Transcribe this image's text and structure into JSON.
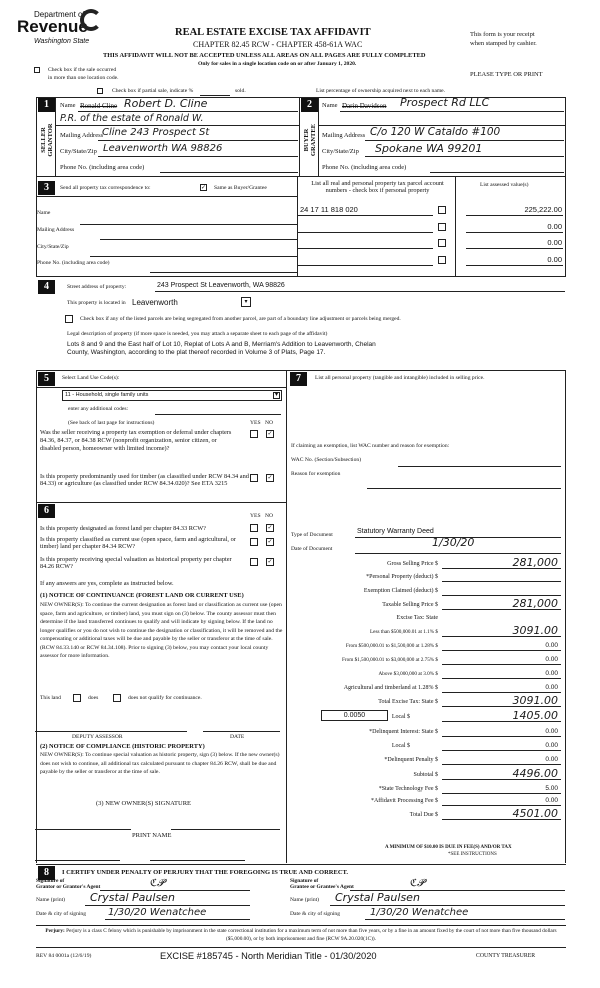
{
  "header": {
    "dept_line": "Department of",
    "revenue": "Revenue",
    "state": "Washington State",
    "title": "REAL ESTATE EXCISE TAX AFFIDAVIT",
    "chapter": "CHAPTER 82.45 RCW - CHAPTER 458-61A WAC",
    "warning": "THIS AFFIDAVIT WILL NOT BE ACCEPTED UNLESS ALL AREAS ON ALL PAGES ARE FULLY COMPLETED",
    "only_for": "Only for sales in a single location code on or after January 1, 2020.",
    "receipt_1": "This form is your receipt",
    "receipt_2": "when stamped by cashier.",
    "please": "PLEASE TYPE OR PRINT",
    "multi_loc_1": "Check box if the sale occurred",
    "multi_loc_2": "in more than one location code.",
    "partial": "Check box if partial sale, indicate %",
    "sold": "sold.",
    "list_pct": "List percentage of ownership acquired next to each name."
  },
  "seller": {
    "side_label": "SELLER GRANTOR",
    "name_label": "Name",
    "name_struck": "Ronald Cline",
    "name": "Robert D. Cline",
    "name_2": "P.R. of the estate of Ronald W.",
    "mail_label": "Mailing Address",
    "mail": "Cline      243 Prospect St",
    "city_label": "City/State/Zip",
    "city": "Leavenworth WA 98826",
    "phone_label": "Phone No. (including area code)"
  },
  "buyer": {
    "side_label": "BUYER GRANTEE",
    "name_label": "Name",
    "name_struck": "Darin Davidson",
    "name": "Prospect Rd LLC",
    "mail_label": "Mailing Address",
    "mail": "C/o  120  W Cataldo #100",
    "city_label": "City/State/Zip",
    "city": "Spokane  WA 99201",
    "phone_label": "Phone No. (including area code)"
  },
  "sec3": {
    "send_label": "Send all property tax correspondence to:",
    "same_label": "Same as Buyer/Grantee",
    "same_checked": true,
    "name_label": "Name",
    "mail_label": "Mailing Address",
    "city_label": "City/State/Zip",
    "phone_label": "Phone No. (including area code)",
    "parcel_header": "List all real and personal property tax parcel account numbers - check box if personal property",
    "value_header": "List assessed value(s)",
    "parcels": [
      "24 17 11 818 020",
      "",
      "",
      ""
    ],
    "values": [
      "225,222.00",
      "0.00",
      "0.00",
      "0.00"
    ]
  },
  "sec4": {
    "street_label": "Street address of property:",
    "street": "243 Prospect St Leavenworth, WA  98826",
    "located_label": "This property is located in",
    "located": "Leavenworth",
    "segregated": "Check box if any of the listed parcels are being segregated from another parcel, are part of a boundary line adjustment or parcels being merged.",
    "legal_label": "Legal description of property (if more space is needed, you may attach a separate sheet to each page of the affidavit)",
    "legal_1": "Lots 8 and 9 and the East half of Lot 10, Replat of Lots A and B, Merriam's Addition to Leavenworth, Chelan",
    "legal_2": "County, Washington, according to the plat thereof recorded in Volume 3 of Plats, Page 17."
  },
  "sec5": {
    "label": "Select Land Use Code(s):",
    "code": "11 - Household, single family units",
    "additional": "enter any additional codes:",
    "see_back": "(See back of last page for instructions)",
    "yes": "YES",
    "no": "NO",
    "q1": "Was the seller receiving a property tax exemption or deferral under chapters 84.36, 84.37, or 84.38 RCW (nonprofit organization, senior citizen, or disabled person, homeowner with limited income)?",
    "q2": "Is this property predominantly used for timber (as classified under RCW 84.34 and 84.33) or agriculture (as classified under RCW 84.34.020)? See ETA 3215"
  },
  "sec6": {
    "yes": "YES",
    "no": "NO",
    "q1": "Is this property designated as forest land per chapter 84.33 RCW?",
    "q2": "Is this property classified as current use (open space, farm and agricultural, or timber) land per chapter 84.34 RCW?",
    "q3": "Is this property receiving special valuation as historical property per chapter 84.26 RCW?",
    "if_yes": "If any answers are yes, complete as instructed below.",
    "n1_title": "(1) NOTICE OF CONTINUANCE (FOREST LAND OR CURRENT USE)",
    "n1_body": "NEW OWNER(S): To continue the current designation as forest land or classification as current use (open space, farm and agriculture, or timber) land, you must sign on (3) below. The county assessor must then determine if the land transferred continues to qualify and will indicate by signing below. If the land no longer qualifies or you do not wish to continue the designation or classification, it will be removed and the compensating or additional taxes will be due and payable by the seller or transferor at the time of sale. (RCW 84.33.140 or RCW 84.34.108). Prior to signing (3) below, you may contact your local county assessor for more information.",
    "this_land": "This land",
    "does": "does",
    "does_not": "does not qualify for continuance.",
    "deputy": "DEPUTY ASSESSOR",
    "date": "DATE",
    "n2_title": "(2) NOTICE OF COMPLIANCE (HISTORIC PROPERTY)",
    "n2_body": "NEW OWNER(S): To continue special valuation as historic property, sign (3) below. If the new owner(s) does not wish to continue, all additional tax calculated pursuant to chapter 84.26 RCW, shall be due and payable by the seller or transferor at the time of sale.",
    "n3": "(3) NEW OWNER(S) SIGNATURE",
    "print_name": "PRINT NAME"
  },
  "sec7": {
    "label": "List all personal property (tangible and intangible) included in selling price.",
    "exempt": "If claiming an exemption, list WAC number and reason for exemption:",
    "wac": "WAC No. (Section/Subsection)",
    "reason": "Reason for exemption",
    "doc_type_label": "Type of Document",
    "doc_type": "Statutory Warranty Deed",
    "doc_date_label": "Date of Document",
    "doc_date": "1/30/20",
    "local_rate": "0.0050",
    "tax_rows": [
      {
        "label": "Gross Selling Price  $",
        "value": "281,000",
        "hand": true
      },
      {
        "label": "*Personal Property (deduct)  $",
        "value": ""
      },
      {
        "label": "Exemption Claimed (deduct)  $",
        "value": ""
      },
      {
        "label": "Taxable Selling Price  $",
        "value": "281,000",
        "hand": true
      },
      {
        "label": "Excise Tax: State",
        "value": "",
        "noline": true
      },
      {
        "label": "Less than $500,000.01 at 1.1%  $",
        "value": "3091.00",
        "hand": true,
        "small": true
      },
      {
        "label": "From $500,000.01 to $1,500,000 at 1.28%  $",
        "value": "0.00",
        "small": true
      },
      {
        "label": "From $1,500,000.01 to $3,000,000 at 2.75%  $",
        "value": "0.00",
        "small": true
      },
      {
        "label": "Above $3,000,000 at 3.0%  $",
        "value": "0.00",
        "small": true
      },
      {
        "label": "Agricultural and timberland at 1.28%  $",
        "value": "0.00"
      },
      {
        "label": "Total Excise Tax: State  $",
        "value": "3091.00",
        "hand": true
      },
      {
        "label": "Local  $",
        "value": "1405.00",
        "hand": true
      },
      {
        "label": "*Delinquent Interest: State  $",
        "value": "0.00"
      },
      {
        "label": "Local  $",
        "value": "0.00"
      },
      {
        "label": "*Delinquent Penalty  $",
        "value": "0.00"
      },
      {
        "label": "Subtotal  $",
        "value": "4496.00",
        "hand": true
      },
      {
        "label": "*State Technology Fee  $",
        "value": "5.00"
      },
      {
        "label": "*Affidavit Processing Fee  $",
        "value": "0.00"
      },
      {
        "label": "Total Due  $",
        "value": "4501.00",
        "hand": true
      }
    ],
    "minimum": "A MINIMUM OF $10.00 IS DUE IN FEE(S) AND/OR TAX",
    "see": "*SEE INSTRUCTIONS"
  },
  "sec8": {
    "certify": "I CERTIFY UNDER PENALTY OF PERJURY THAT THE FOREGOING IS TRUE AND CORRECT.",
    "sig_grantor": "Signature of\nGrantor or Grantor's Agent",
    "sig_grantee": "Signature of\nGrantee or Grantee's Agent",
    "name_print": "Name (print)",
    "date_city": "Date & city of signing",
    "grantor_name": "Crystal Paulsen",
    "grantor_date": "1/30/20  Wenatchee",
    "grantee_name": "Crystal Paulsen",
    "grantee_date": "1/30/20  Wenatchee"
  },
  "footer": {
    "perjury_label": "Perjury:",
    "perjury": "Perjury is a class C felony which is punishable by imprisonment in the state correctional institution for a maximum term of not more than five years, or by a fine in an amount fixed by the court of not more than five thousand dollars ($5,000.00), or by both imprisonment and fine (RCW 9A.20.020(1C)).",
    "rev": "REV 84 0001a (12/6/19)",
    "excise": "EXCISE #185745 - North Meridian Title - 01/30/2020",
    "treasurer": "COUNTY TREASURER"
  }
}
